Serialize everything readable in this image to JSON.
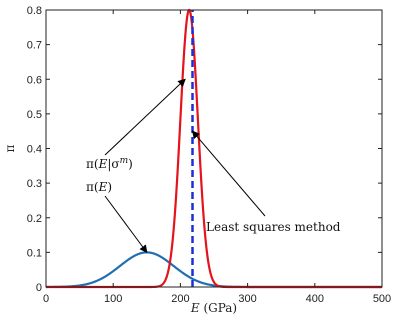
{
  "chart_data": {
    "type": "line",
    "xlabel": "E (GPa)",
    "ylabel": "π",
    "xlim": [
      0,
      500
    ],
    "ylim": [
      0,
      0.8
    ],
    "xticks": [
      "0",
      "100",
      "200",
      "300",
      "400",
      "500"
    ],
    "yticks": [
      "0",
      "0.1",
      "0.2",
      "0.3",
      "0.4",
      "0.5",
      "0.6",
      "0.7",
      "0.8"
    ],
    "grid": false,
    "series": [
      {
        "name": "π(E)",
        "color": "#1f6fb2",
        "style": "solid",
        "curve": "gaussian",
        "mean": 150,
        "sd": 40,
        "peak": 0.1,
        "x": [
          0,
          50,
          100,
          150,
          200,
          250,
          300,
          350,
          400,
          500
        ],
        "y": [
          0.0,
          0.004,
          0.046,
          0.1,
          0.046,
          0.004,
          0.0,
          0.0,
          0.0,
          0.0
        ]
      },
      {
        "name": "π(E|σ^m)",
        "color": "#e3141b",
        "style": "solid",
        "curve": "gaussian",
        "mean": 213,
        "sd": 13,
        "peak": 0.8,
        "x": [
          150,
          180,
          200,
          213,
          230,
          250,
          280
        ],
        "y": [
          0.0,
          0.028,
          0.48,
          0.8,
          0.34,
          0.014,
          0.0
        ]
      },
      {
        "name": "Least squares method",
        "color": "#1a2fd6",
        "style": "dashed",
        "curve": "vertical",
        "x": [
          218,
          218
        ],
        "y": [
          0,
          0.8
        ]
      }
    ],
    "annotations": [
      {
        "label_parts": [
          "π(",
          "E",
          "|σ",
          "m",
          ")"
        ],
        "target": [
          207,
          0.6
        ]
      },
      {
        "label_parts": [
          "π(",
          "E",
          ")"
        ],
        "target": [
          150,
          0.1
        ]
      },
      {
        "label": "Least squares method",
        "target": [
          218,
          0.45
        ]
      }
    ]
  }
}
